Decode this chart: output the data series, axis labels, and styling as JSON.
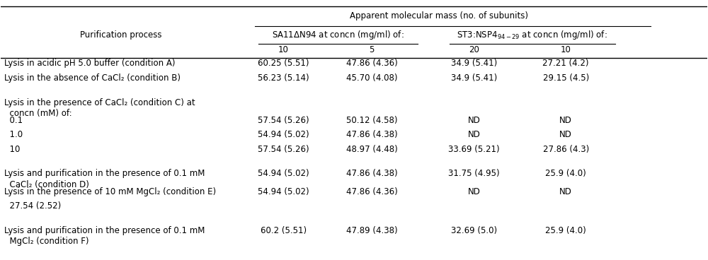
{
  "title": "Apparent molecular mass (no. of subunits)",
  "col_header_1": "SA11ΔN94 at concn (mg/ml) of:",
  "col_header_2": "ST3:NSP4ₔ₋₂₉ at concn (mg/ml) of:",
  "col_header_2_plain": "ST3:NSP4$_{94-29}$ at concn (mg/ml) of:",
  "sub_headers": [
    "10",
    "5",
    "20",
    "10"
  ],
  "left_header": "Purification process",
  "rows": [
    {
      "label": [
        "Lysis in acidic pH 5.0 buffer (condition A)"
      ],
      "data": [
        "60.25 (5.51)",
        "47.86 (4.36)",
        "34.9 (5.41)",
        "27.21 (4.2)"
      ]
    },
    {
      "label": [
        "Lysis in the absence of CaCl₂ (condition B)"
      ],
      "data": [
        "56.23 (5.14)",
        "45.70 (4.08)",
        "34.9 (5.41)",
        "29.15 (4.5)"
      ]
    },
    {
      "label": [
        "Lysis in the presence of CaCl₂ (condition C) at",
        "  concn (mM) of:"
      ],
      "data": [
        "",
        "",
        "",
        ""
      ]
    },
    {
      "label": [
        "  0.1"
      ],
      "data": [
        "57.54 (5.26)",
        "50.12 (4.58)",
        "ND",
        "ND"
      ]
    },
    {
      "label": [
        "  1.0"
      ],
      "data": [
        "54.94 (5.02)",
        "47.86 (4.38)",
        "ND",
        "ND"
      ]
    },
    {
      "label": [
        "  10"
      ],
      "data": [
        "57.54 (5.26)",
        "48.97 (4.48)",
        "33.69 (5.21)",
        "27.86 (4.3)"
      ]
    },
    {
      "label": [
        "Lysis and purification in the presence of 0.1 mM",
        "  CaCl₂ (condition D)"
      ],
      "data": [
        "54.94 (5.02)",
        "47.86 (4.38)",
        "31.75 (4.95)",
        "25.9 (4.0)"
      ]
    },
    {
      "label": [
        "Lysis in the presence of 10 mM MgCl₂ (condition E)"
      ],
      "data": [
        "54.94 (5.02)",
        "47.86 (4.36)",
        "ND",
        "ND"
      ]
    },
    {
      "label": [
        "  27.54 (2.52)"
      ],
      "data": [
        "",
        "",
        "",
        ""
      ]
    },
    {
      "label": [
        "Lysis and purification in the presence of 0.1 mM",
        "  MgCl₂ (condition F)"
      ],
      "data": [
        "60.2 (5.51)",
        "47.89 (4.38)",
        "32.69 (5.0)",
        "25.9 (4.0)"
      ]
    }
  ],
  "bg_color": "#ffffff",
  "text_color": "#000000",
  "fontsize": 8.5,
  "line_color": "#000000"
}
